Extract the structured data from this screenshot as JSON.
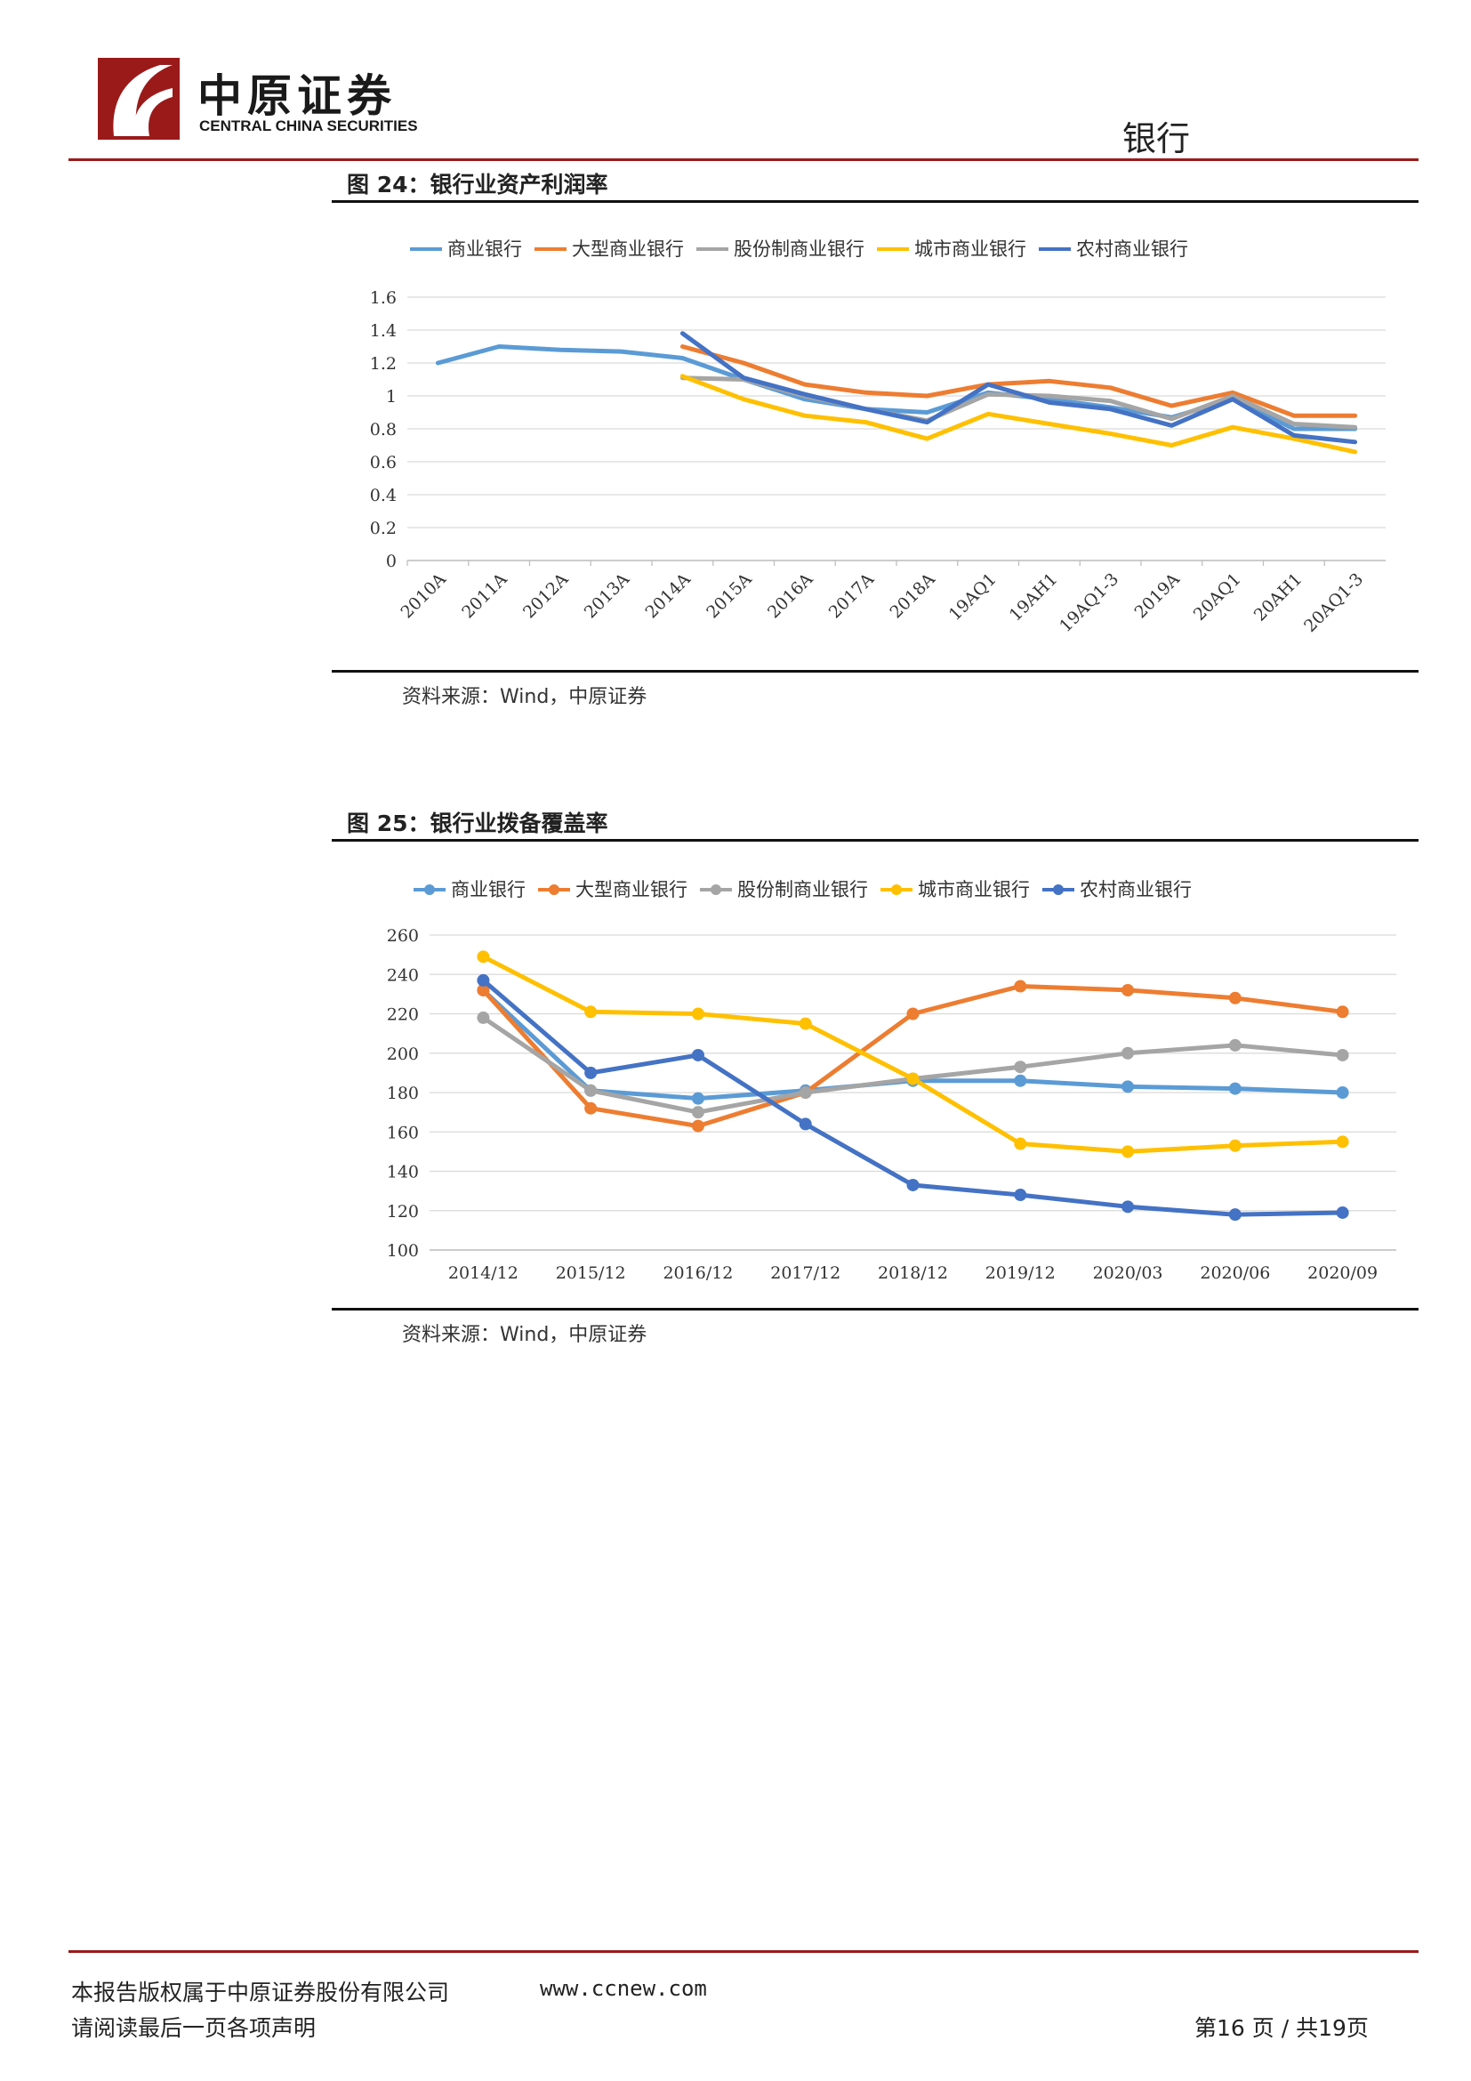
{
  "header": {
    "logo_cn": "中原证券",
    "logo_en": "CENTRAL CHINA SECURITIES",
    "section": "银行"
  },
  "figure24": {
    "title": "图 24：银行业资产利润率",
    "source": "资料来源：Wind，中原证券"
  },
  "figure25": {
    "title": "图 25：银行业拨备覆盖率",
    "source": "资料来源：Wind，中原证券"
  },
  "footer": {
    "copyright": "本报告版权属于中原证券股份有限公司",
    "url": "www.ccnew.com",
    "disclaimer": "请阅读最后一页各项声明",
    "page": "第16 页 / 共19页"
  },
  "colors": {
    "brand_red": "#9a1a1a",
    "commercial": "#5b9bd5",
    "large": "#ed7d31",
    "joint_stock": "#a5a5a5",
    "city": "#ffc000",
    "rural": "#4472c4"
  },
  "chart_data": [
    {
      "type": "line",
      "title": "银行业资产利润率",
      "x": [
        "2010A",
        "2011A",
        "2012A",
        "2013A",
        "2014A",
        "2015A",
        "2016A",
        "2017A",
        "2018A",
        "19AQ1",
        "19AH1",
        "19AQ1-3",
        "2019A",
        "20AQ1",
        "20AH1",
        "20AQ1-3"
      ],
      "ylim": [
        0,
        1.6
      ],
      "yticks": [
        "0",
        "0.2",
        "0.4",
        "0.6",
        "0.8",
        "1",
        "1.2",
        "1.4",
        "1.6"
      ],
      "grid": true,
      "legend": "top",
      "markers": false,
      "series": [
        {
          "name": "商业银行",
          "color": "#5b9bd5",
          "values": [
            1.2,
            1.3,
            1.28,
            1.27,
            1.23,
            1.1,
            0.98,
            0.92,
            0.9,
            1.02,
            0.98,
            0.93,
            0.87,
            0.98,
            0.8,
            0.8
          ]
        },
        {
          "name": "大型商业银行",
          "color": "#ed7d31",
          "values": [
            null,
            null,
            null,
            null,
            1.3,
            1.2,
            1.07,
            1.02,
            1.0,
            1.07,
            1.09,
            1.05,
            0.94,
            1.02,
            0.88,
            0.88
          ]
        },
        {
          "name": "股份制商业银行",
          "color": "#a5a5a5",
          "values": [
            null,
            null,
            null,
            null,
            1.11,
            1.1,
            1.0,
            0.92,
            0.85,
            1.01,
            1.0,
            0.97,
            0.86,
            1.0,
            0.83,
            0.81
          ]
        },
        {
          "name": "城市商业银行",
          "color": "#ffc000",
          "values": [
            null,
            null,
            null,
            null,
            1.12,
            0.98,
            0.88,
            0.84,
            0.74,
            0.89,
            0.83,
            0.77,
            0.7,
            0.81,
            0.74,
            0.66
          ]
        },
        {
          "name": "农村商业银行",
          "color": "#4472c4",
          "values": [
            null,
            null,
            null,
            null,
            1.38,
            1.11,
            1.01,
            0.92,
            0.84,
            1.07,
            0.96,
            0.92,
            0.82,
            0.98,
            0.76,
            0.72
          ]
        }
      ]
    },
    {
      "type": "line",
      "title": "银行业拨备覆盖率",
      "x": [
        "2014/12",
        "2015/12",
        "2016/12",
        "2017/12",
        "2018/12",
        "2019/12",
        "2020/03",
        "2020/06",
        "2020/09"
      ],
      "ylim": [
        100,
        260
      ],
      "yticks": [
        "100",
        "120",
        "140",
        "160",
        "180",
        "200",
        "220",
        "240",
        "260"
      ],
      "grid": true,
      "legend": "top",
      "markers": true,
      "series": [
        {
          "name": "商业银行",
          "color": "#5b9bd5",
          "values": [
            232,
            181,
            177,
            181,
            186,
            186,
            183,
            182,
            180
          ]
        },
        {
          "name": "大型商业银行",
          "color": "#ed7d31",
          "values": [
            232,
            172,
            163,
            180,
            220,
            234,
            232,
            228,
            221
          ]
        },
        {
          "name": "股份制商业银行",
          "color": "#a5a5a5",
          "values": [
            218,
            181,
            170,
            180,
            187,
            193,
            200,
            204,
            199
          ]
        },
        {
          "name": "城市商业银行",
          "color": "#ffc000",
          "values": [
            249,
            221,
            220,
            215,
            187,
            154,
            150,
            153,
            155
          ]
        },
        {
          "name": "农村商业银行",
          "color": "#4472c4",
          "values": [
            237,
            190,
            199,
            164,
            133,
            128,
            122,
            118,
            119
          ]
        }
      ]
    }
  ]
}
